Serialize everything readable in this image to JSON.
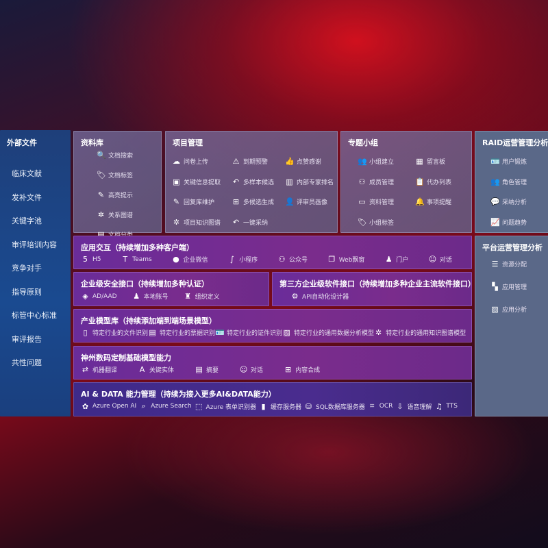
{
  "left": {
    "title": "外部文件",
    "items": [
      "临床文献",
      "发补文件",
      "关键字池",
      "审评培训内容",
      "竞争对手",
      "指导原则",
      "标管中心标准",
      "审评报告",
      "共性问题"
    ]
  },
  "library": {
    "title": "资料库",
    "items": [
      {
        "icon": "doc-search-icon",
        "label": "文档搜索"
      },
      {
        "icon": "tag-icon",
        "label": "文档标签"
      },
      {
        "icon": "pen-icon",
        "label": "高亮提示"
      },
      {
        "icon": "graph-icon",
        "label": "关系图谱"
      },
      {
        "icon": "doc-category-icon",
        "label": "文档分类"
      }
    ]
  },
  "project": {
    "title": "项目管理",
    "items": [
      {
        "icon": "cloud-upload-icon",
        "label": "问卷上传"
      },
      {
        "icon": "alarm-icon",
        "label": "到期预警"
      },
      {
        "icon": "thumbs-up-icon",
        "label": "点赞感谢"
      },
      {
        "icon": "extract-icon",
        "label": "关键信息提取"
      },
      {
        "icon": "reply-icon",
        "label": "多样本候选"
      },
      {
        "icon": "ranking-icon",
        "label": "内部专家排名"
      },
      {
        "icon": "pen-icon",
        "label": "回复库维护"
      },
      {
        "icon": "puzzle-icon",
        "label": "多候选生成"
      },
      {
        "icon": "user-icon",
        "label": "评审员画像"
      },
      {
        "icon": "graph-icon",
        "label": "项目知识图谱"
      },
      {
        "icon": "reply-icon",
        "label": "一键采纳"
      }
    ]
  },
  "group": {
    "title": "专题小组",
    "items": [
      {
        "icon": "users-icon",
        "label": "小组建立"
      },
      {
        "icon": "bbs-icon",
        "label": "留言板"
      },
      {
        "icon": "user-add-icon",
        "label": "成员管理"
      },
      {
        "icon": "clipboard-icon",
        "label": "代办列表"
      },
      {
        "icon": "folder-icon",
        "label": "资料管理"
      },
      {
        "icon": "bell-icon",
        "label": "事项提醒"
      },
      {
        "icon": "tag-icon",
        "label": "小组标签"
      }
    ]
  },
  "raid": {
    "title": "RAID运营管理分析",
    "items": [
      {
        "icon": "id-card-icon",
        "label": "用户锻炼"
      },
      {
        "icon": "users-icon",
        "label": "角色管理"
      },
      {
        "icon": "qa-icon",
        "label": "采纳分析"
      },
      {
        "icon": "trend-icon",
        "label": "问题趋势"
      }
    ]
  },
  "platform": {
    "title": "平台运营管理分析",
    "items": [
      {
        "icon": "list-check-icon",
        "label": "资源分配"
      },
      {
        "icon": "apps-icon",
        "label": "应用管理"
      },
      {
        "icon": "chart-icon",
        "label": "应用分析"
      }
    ]
  },
  "app": {
    "title": "应用交互（持续增加多种客户端）",
    "items": [
      {
        "icon": "html5-icon",
        "label": "H5"
      },
      {
        "icon": "teams-icon",
        "label": "Teams"
      },
      {
        "icon": "wechat-icon",
        "label": "企业微信"
      },
      {
        "icon": "mini-program-icon",
        "label": "小程序"
      },
      {
        "icon": "official-account-icon",
        "label": "公众号"
      },
      {
        "icon": "window-icon",
        "label": "Web飘窗"
      },
      {
        "icon": "portal-icon",
        "label": "门户"
      },
      {
        "icon": "chat-icon",
        "label": "对话"
      }
    ]
  },
  "security": {
    "title": "企业级安全接口（持续增加多种认证）",
    "items": [
      {
        "icon": "ad-icon",
        "label": "AD/AAD"
      },
      {
        "icon": "local-account-icon",
        "label": "本地账号"
      },
      {
        "icon": "org-icon",
        "label": "组织定义"
      }
    ]
  },
  "thirdparty": {
    "title": "第三方企业级软件接口（持续增加多种企业主流软件接口）",
    "items": [
      {
        "icon": "gear-icon",
        "label": "API自动化设计器"
      }
    ]
  },
  "industry": {
    "title": "产业模型库（持续添加端到端场景模型）",
    "items": [
      {
        "icon": "file-icon",
        "label": "特定行业的文件识别"
      },
      {
        "icon": "receipt-icon",
        "label": "特定行业的票据识别"
      },
      {
        "icon": "id-card-icon",
        "label": "特定行业的证件识别"
      },
      {
        "icon": "image-icon",
        "label": "特定行业的通用数据分析模型"
      },
      {
        "icon": "graph-icon",
        "label": "特定行业的通用知识图谱模型"
      }
    ]
  },
  "base": {
    "title": "神州数码定制基础模型能力",
    "items": [
      {
        "icon": "translate-icon",
        "label": "机器翻译"
      },
      {
        "icon": "entity-icon",
        "label": "关键实体"
      },
      {
        "icon": "summary-icon",
        "label": "摘要"
      },
      {
        "icon": "chat-icon",
        "label": "对话"
      },
      {
        "icon": "puzzle-icon",
        "label": "内容合成"
      }
    ]
  },
  "ai": {
    "title": "AI & DATA 能力管理（持续为接入更多AI&DATA能力）",
    "items": [
      {
        "icon": "openai-icon",
        "label": "Azure Open AI"
      },
      {
        "icon": "search-icon",
        "label": "Azure Search"
      },
      {
        "icon": "form-recognizer-icon",
        "label": "Azure 表单识别器"
      },
      {
        "icon": "cache-icon",
        "label": "缓存服务器"
      },
      {
        "icon": "sql-icon",
        "label": "SQL数据库服务器"
      },
      {
        "icon": "ocr-icon",
        "label": "OCR"
      },
      {
        "icon": "speech-icon",
        "label": "语音理解"
      },
      {
        "icon": "tts-icon",
        "label": "TTS"
      }
    ]
  }
}
